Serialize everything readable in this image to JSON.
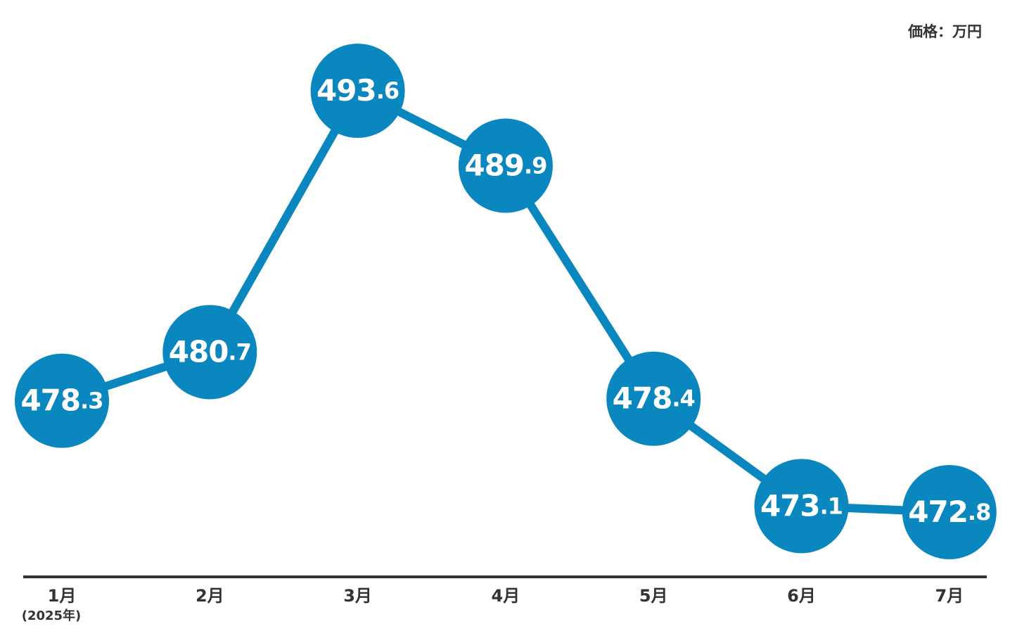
{
  "chart_data": {
    "type": "line",
    "unit_label": "価格：万円",
    "categories": [
      "1月",
      "2月",
      "3月",
      "4月",
      "5月",
      "6月",
      "7月"
    ],
    "x_note": "(2025年)",
    "series": [
      {
        "name": "価格",
        "color": "#0a87bf",
        "values": [
          478.3,
          480.7,
          493.6,
          489.9,
          478.4,
          473.1,
          472.8
        ]
      }
    ]
  }
}
